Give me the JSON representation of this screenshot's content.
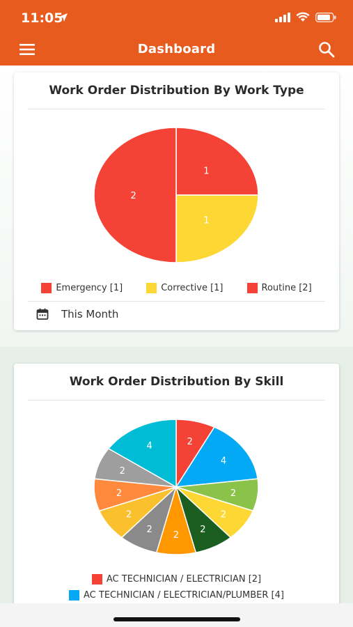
{
  "status_bar": {
    "time": "11:05"
  },
  "header": {
    "title": "Dashboard"
  },
  "colors": {
    "accent": "#e85b1f",
    "emergency": "#f44336",
    "corrective": "#fdd835",
    "routine": "#f44336"
  },
  "card1": {
    "title": "Work Order Distribution By Work Type",
    "period": "This Month",
    "legend": [
      {
        "label": "Emergency [1]",
        "color": "#f44336"
      },
      {
        "label": "Corrective [1]",
        "color": "#fdd835"
      },
      {
        "label": "Routine [2]",
        "color": "#f44336"
      }
    ]
  },
  "card2": {
    "title": "Work Order Distribution By Skill",
    "legend": [
      {
        "label": "AC TECHNICIAN / ELECTRICIAN [2]",
        "color": "#f44336"
      },
      {
        "label": "AC TECHNICIAN / ELECTRICIAN/PLUMBER [4]",
        "color": "#03a9f4"
      }
    ]
  },
  "chart_data": [
    {
      "type": "pie",
      "title": "Work Order Distribution By Work Type",
      "categories": [
        "Emergency",
        "Corrective",
        "Routine"
      ],
      "values": [
        1,
        1,
        2
      ],
      "colors": [
        "#f44336",
        "#fdd835",
        "#f44336"
      ],
      "data_labels": [
        "1",
        "1",
        "2"
      ]
    },
    {
      "type": "pie",
      "title": "Work Order Distribution By Skill",
      "categories": [
        "AC TECHNICIAN / ELECTRICIAN",
        "AC TECHNICIAN / ELECTRICIAN/PLUMBER",
        "",
        "",
        "",
        "",
        "",
        "",
        "",
        "",
        ""
      ],
      "values": [
        2,
        4,
        2,
        2,
        2,
        2,
        2,
        2,
        2,
        2,
        4
      ],
      "colors": [
        "#f44336",
        "#03a9f4",
        "#8bc34a",
        "#fdd835",
        "#1b5e20",
        "#ff9800",
        "#8a8a8a",
        "#fbc02d",
        "#ff8a3d",
        "#9e9e9e",
        "#00bcd4"
      ],
      "data_labels": [
        "2",
        "4",
        "2",
        "2",
        "2",
        "2",
        "2",
        "2",
        "2",
        "2",
        "4"
      ]
    }
  ]
}
